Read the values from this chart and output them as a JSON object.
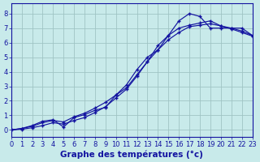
{
  "background_color": "#c8eaea",
  "grid_color": "#a0c4c4",
  "line_color": "#1212a0",
  "xlabel": "Graphe des températures (°c)",
  "xlabel_fontsize": 7.5,
  "tick_fontsize": 6,
  "xlim": [
    0,
    23
  ],
  "ylim": [
    -0.5,
    8.7
  ],
  "yticks": [
    0,
    1,
    2,
    3,
    4,
    5,
    6,
    7,
    8
  ],
  "xticks": [
    0,
    1,
    2,
    3,
    4,
    5,
    6,
    7,
    8,
    9,
    10,
    11,
    12,
    13,
    14,
    15,
    16,
    17,
    18,
    19,
    20,
    21,
    22,
    23
  ],
  "line1_x": [
    0,
    1,
    2,
    3,
    4,
    5,
    6,
    7,
    8,
    9,
    10,
    11,
    12,
    13,
    14,
    15,
    16,
    17,
    18,
    19,
    20,
    21,
    22,
    23
  ],
  "line1_y": [
    0.0,
    0.1,
    0.3,
    0.6,
    0.7,
    0.2,
    0.85,
    1.05,
    1.35,
    1.55,
    2.4,
    3.1,
    4.15,
    5.0,
    5.5,
    6.5,
    7.5,
    8.0,
    7.8,
    7.0,
    7.0,
    7.0,
    7.0,
    6.5
  ],
  "line2_x": [
    0,
    1,
    2,
    3,
    4,
    5,
    6,
    7,
    8,
    9,
    10,
    11,
    12,
    13,
    14,
    15,
    16,
    17,
    18,
    19,
    20,
    21,
    22,
    23
  ],
  "line2_y": [
    0.0,
    0.1,
    0.25,
    0.5,
    0.65,
    0.55,
    0.9,
    1.15,
    1.5,
    1.9,
    2.4,
    2.9,
    3.8,
    4.7,
    5.5,
    6.2,
    6.7,
    7.1,
    7.2,
    7.3,
    7.15,
    7.0,
    6.8,
    6.5
  ],
  "line3_x": [
    0,
    1,
    2,
    3,
    4,
    5,
    6,
    7,
    8,
    9,
    10,
    11,
    12,
    13,
    14,
    15,
    16,
    17,
    18,
    19,
    20,
    21,
    22,
    23
  ],
  "line3_y": [
    0.0,
    0.05,
    0.15,
    0.3,
    0.5,
    0.4,
    0.65,
    0.85,
    1.2,
    1.6,
    2.2,
    2.8,
    3.7,
    4.7,
    5.8,
    6.5,
    7.0,
    7.2,
    7.35,
    7.5,
    7.15,
    6.95,
    6.7,
    6.45
  ]
}
